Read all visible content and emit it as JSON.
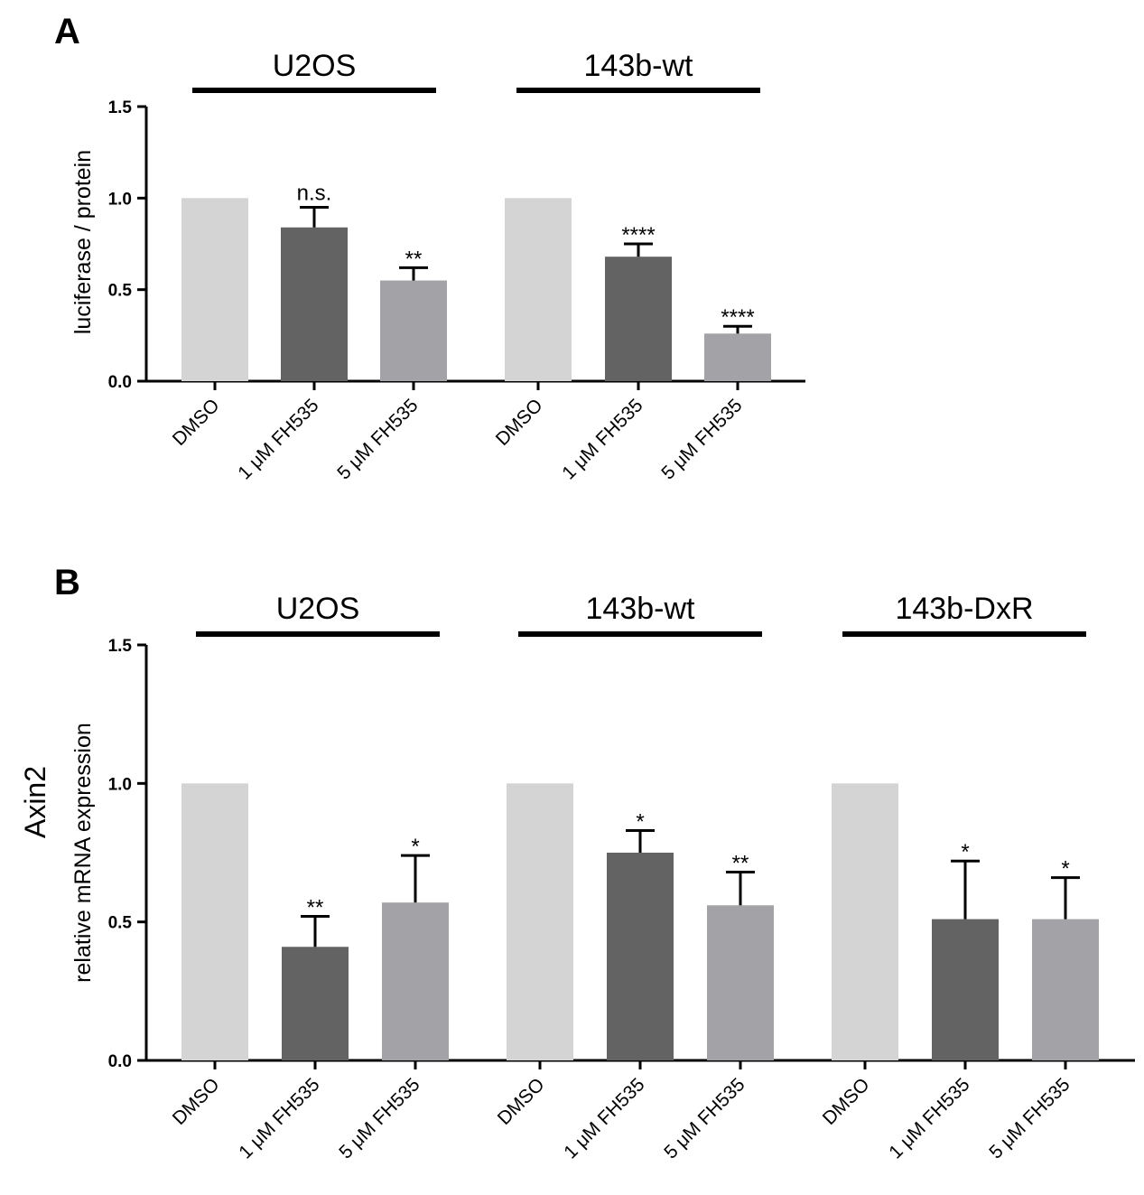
{
  "colors": {
    "dmso": "#d4d4d4",
    "low_dose": "#636363",
    "high_dose": "#a3a3a7",
    "axis": "#000000"
  },
  "chart_data": [
    {
      "panel": "A",
      "type": "bar",
      "ylabel": "luciferase / protein",
      "ylim": [
        0,
        1.5
      ],
      "yticks": [
        "0.0",
        "0.5",
        "1.0",
        "1.5"
      ],
      "groups": [
        {
          "name": "U2OS",
          "categories": [
            "DMSO",
            "1 μM FH535",
            "5 μM FH535"
          ],
          "values": [
            1.0,
            0.84,
            0.55
          ],
          "errors": [
            0,
            0.11,
            0.07
          ],
          "significance": [
            "",
            "n.s.",
            "**"
          ]
        },
        {
          "name": "143b-wt",
          "categories": [
            "DMSO",
            "1 μM FH535",
            "5 μM FH535"
          ],
          "values": [
            1.0,
            0.68,
            0.26
          ],
          "errors": [
            0,
            0.07,
            0.04
          ],
          "significance": [
            "",
            "****",
            "****"
          ]
        }
      ]
    },
    {
      "panel": "B",
      "type": "bar",
      "gene": "Axin2",
      "ylabel": "relative mRNA expression",
      "ylim": [
        0,
        1.5
      ],
      "yticks": [
        "0.0",
        "0.5",
        "1.0",
        "1.5"
      ],
      "groups": [
        {
          "name": "U2OS",
          "categories": [
            "DMSO",
            "1 μM FH535",
            "5 μM FH535"
          ],
          "values": [
            1.0,
            0.41,
            0.57
          ],
          "errors": [
            0,
            0.11,
            0.17
          ],
          "significance": [
            "",
            "**",
            "*"
          ]
        },
        {
          "name": "143b-wt",
          "categories": [
            "DMSO",
            "1 μM FH535",
            "5 μM FH535"
          ],
          "values": [
            1.0,
            0.75,
            0.56
          ],
          "errors": [
            0,
            0.08,
            0.12
          ],
          "significance": [
            "",
            "*",
            "**"
          ]
        },
        {
          "name": "143b-DxR",
          "categories": [
            "DMSO",
            "1 μM FH535",
            "5 μM FH535"
          ],
          "values": [
            1.0,
            0.51,
            0.51
          ],
          "errors": [
            0,
            0.21,
            0.15
          ],
          "significance": [
            "",
            "*",
            "*"
          ]
        }
      ]
    }
  ]
}
